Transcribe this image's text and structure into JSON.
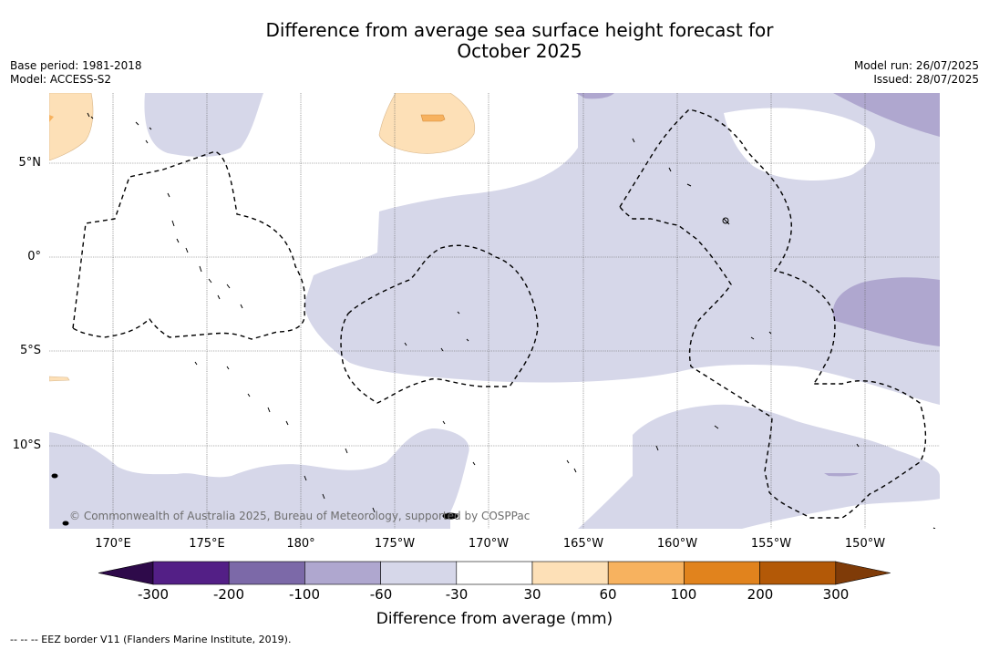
{
  "title_line1": "Difference from average sea surface height forecast for",
  "title_line2": "October 2025",
  "meta_left": {
    "base_period": "Base period: 1981-2018",
    "model": "Model: ACCESS-S2"
  },
  "meta_right": {
    "model_run": "Model run: 26/07/2025",
    "issued": "Issued: 28/07/2025"
  },
  "lat_labels": [
    "5°N",
    "0°",
    "5°S",
    "10°S"
  ],
  "lon_labels": [
    "170°E",
    "175°E",
    "180°",
    "175°W",
    "170°W",
    "165°W",
    "160°W",
    "155°W",
    "150°W"
  ],
  "copyright": "© Commonwealth of Australia 2025, Bureau of Meteorology, supported by COSPPac",
  "colorbar": {
    "ticks": [
      "-300",
      "-200",
      "-100",
      "-60",
      "-30",
      "30",
      "60",
      "100",
      "200",
      "300"
    ],
    "colors": [
      "#531f86",
      "#7c69a8",
      "#afa7cf",
      "#d6d7e9",
      "#ffffff",
      "#fde0b7",
      "#f7b25f",
      "#e1831d",
      "#b35907"
    ],
    "under_color": "#2e0a4a",
    "over_color": "#7f3b08",
    "label": "Difference from average (mm)"
  },
  "legend_note": "--  --  -- EEZ border V11 (Flanders Marine Institute, 2019)."
}
